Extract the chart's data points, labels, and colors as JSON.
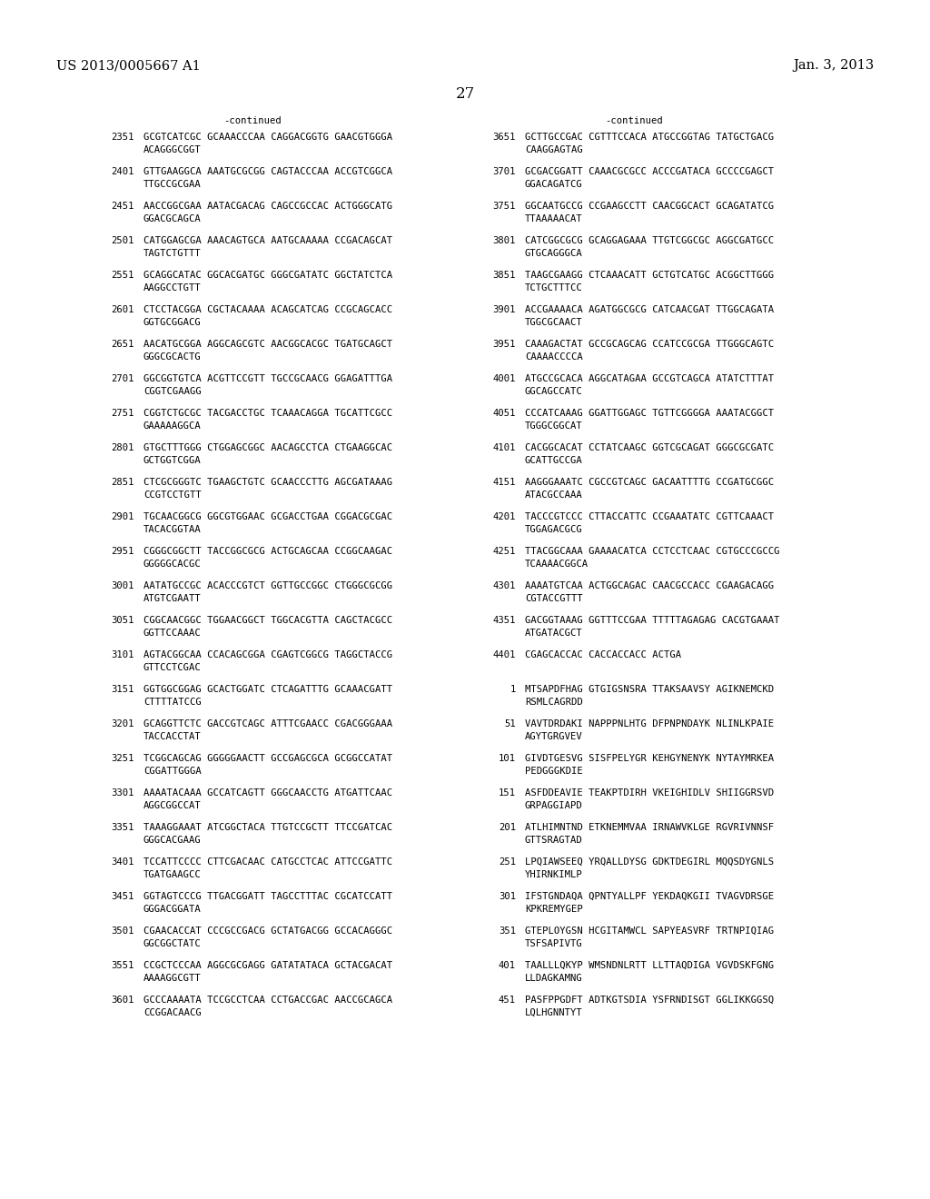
{
  "header_left": "US 2013/0005667 A1",
  "header_right": "Jan. 3, 2013",
  "page_number": "27",
  "background_color": "#ffffff",
  "text_color": "#000000",
  "left_continued": "-continued",
  "right_continued": "-continued",
  "left_column": [
    {
      "num": "2351",
      "line1": "GCGTCATCGC GCAAACCCAA CAGGACGGTG GAACGTGGGA",
      "line2": "ACAGGGCGGT"
    },
    {
      "num": "2401",
      "line1": "GTTGAAGGCA AAATGCGCGG CAGTACCCAA ACCGTCGGCA",
      "line2": "TTGCCGCGAA"
    },
    {
      "num": "2451",
      "line1": "AACCGGCGAA AATACGACAG CAGCCGCCAC ACTGGGCATG",
      "line2": "GGACGCAGCA"
    },
    {
      "num": "2501",
      "line1": "CATGGAGCGA AAACAGTGCA AATGCAAAAA CCGACAGCAT",
      "line2": "TAGTCTGTTT"
    },
    {
      "num": "2551",
      "line1": "GCAGGCATAC GGCACGATGC GGGCGATATC GGCTATCTCA",
      "line2": "AAGGCCTGTT"
    },
    {
      "num": "2601",
      "line1": "CTCCTACGGA CGCTACAAAA ACAGCATCAG CCGCAGCACC",
      "line2": "GGTGCGGACG"
    },
    {
      "num": "2651",
      "line1": "AACATGCGGA AGGCAGCGTC AACGGCACGC TGATGCAGCT",
      "line2": "GGGCGCACTG"
    },
    {
      "num": "2701",
      "line1": "GGCGGTGTCA ACGTTCCGTT TGCCGCAACG GGAGATTTGA",
      "line2": "CGGTCGAAGG"
    },
    {
      "num": "2751",
      "line1": "CGGTCTGCGC TACGACCTGC TCAAACAGGA TGCATTCGCC",
      "line2": "GAAAAAGGCA"
    },
    {
      "num": "2801",
      "line1": "GTGCTTTGGG CTGGAGCGGC AACAGCCTCA CTGAAGGCAC",
      "line2": "GCTGGTCGGA"
    },
    {
      "num": "2851",
      "line1": "CTCGCGGGTC TGAAGCTGTC GCAACCCTTG AGCGATAAAG",
      "line2": "CCGTCCTGTT"
    },
    {
      "num": "2901",
      "line1": "TGCAACGGCG GGCGTGGAAC GCGACCTGAA CGGACGCGAC",
      "line2": "TACACGGTAA"
    },
    {
      "num": "2951",
      "line1": "CGGGCGGCTT TACCGGCGCG ACTGCAGCAA CCGGCAAGAC",
      "line2": "GGGGGCACGC"
    },
    {
      "num": "3001",
      "line1": "AATATGCCGC ACACCCGTCT GGTTGCCGGC CTGGGCGCGG",
      "line2": "ATGTCGAATT"
    },
    {
      "num": "3051",
      "line1": "CGGCAACGGC TGGAACGGCT TGGCACGTTA CAGCTACGCC",
      "line2": "GGTTCCAAAC"
    },
    {
      "num": "3101",
      "line1": "AGTACGGCAA CCACAGCGGA CGAGTCGGCG TAGGCTACCG",
      "line2": "GTTCCTCGAC"
    },
    {
      "num": "3151",
      "line1": "GGTGGCGGAG GCACTGGATC CTCAGATTTG GCAAACGATT",
      "line2": "CTTTTATCCG"
    },
    {
      "num": "3201",
      "line1": "GCAGGTTCTC GACCGTCAGC ATTTCGAACC CGACGGGAAA",
      "line2": "TACCACCTAT"
    },
    {
      "num": "3251",
      "line1": "TCGGCAGCAG GGGGGAACTT GCCGAGCGCA GCGGCCATAT",
      "line2": "CGGATTGGGA"
    },
    {
      "num": "3301",
      "line1": "AAAATACAAA GCCATCAGTT GGGCAACCTG ATGATTCAAC",
      "line2": "AGGCGGCCAT"
    },
    {
      "num": "3351",
      "line1": "TAAAGGAAAT ATCGGCTACA TTGTCCGCTT TTCCGATCAC",
      "line2": "GGGCACGAAG"
    },
    {
      "num": "3401",
      "line1": "TCCATTCCCC CTTCGACAAC CATGCCTCAC ATTCCGATTC",
      "line2": "TGATGAAGCC"
    },
    {
      "num": "3451",
      "line1": "GGTAGTCCCG TTGACGGATT TAGCCTTTAC CGCATCCATT",
      "line2": "GGGACGGATA"
    },
    {
      "num": "3501",
      "line1": "CGAACACCAT CCCGCCGACG GCTATGACGG GCCACAGGGC",
      "line2": "GGCGGCTATC"
    },
    {
      "num": "3551",
      "line1": "CCGCTCCCAA AGGCGCGAGG GATATATACA GCTACGACAT",
      "line2": "AAAAGGCGTT"
    },
    {
      "num": "3601",
      "line1": "GCCCAAAATA TCCGCCTCAA CCTGACCGAC AACCGCAGCA",
      "line2": "CCGGACAACG"
    }
  ],
  "right_column": [
    {
      "num": "3651",
      "line1": "GCTTGCCGAC CGTTTCCACA ATGCCGGTAG TATGCTGACG",
      "line2": "CAAGGAGTAG"
    },
    {
      "num": "3701",
      "line1": "GCGACGGATT CAAACGCGCC ACCCGATACA GCCCCGAGCT",
      "line2": "GGACAGATCG"
    },
    {
      "num": "3751",
      "line1": "GGCAATGCCG CCGAAGCCTT CAACGGCACT GCAGATATCG",
      "line2": "TTAAAAACAT"
    },
    {
      "num": "3801",
      "line1": "CATCGGCGCG GCAGGAGAAA TTGTCGGCGC AGGCGATGCC",
      "line2": "GTGCAGGGCA"
    },
    {
      "num": "3851",
      "line1": "TAAGCGAAGG CTCAAACATT GCTGTCATGC ACGGCTTGGG",
      "line2": "TCTGCTTTCC"
    },
    {
      "num": "3901",
      "line1": "ACCGAAAACA AGATGGCGCG CATCAACGAT TTGGCAGATA",
      "line2": "TGGCGCAACT"
    },
    {
      "num": "3951",
      "line1": "CAAAGACTAT GCCGCAGCAG CCATCCGCGA TTGGGCAGTC",
      "line2": "CAAAACCCCA"
    },
    {
      "num": "4001",
      "line1": "ATGCCGCACA AGGCATAGAA GCCGTCAGCA ATATCTTTAT",
      "line2": "GGCAGCCATC"
    },
    {
      "num": "4051",
      "line1": "CCCATCAAAG GGATTGGAGC TGTTCGGGGA AAATACGGCT",
      "line2": "TGGGCGGCAT"
    },
    {
      "num": "4101",
      "line1": "CACGGCACAT CCTATCAAGC GGTCGCAGAT GGGCGCGATC",
      "line2": "GCATTGCCGA"
    },
    {
      "num": "4151",
      "line1": "AAGGGAAATC CGCCGTCAGC GACAATTTTG CCGATGCGGC",
      "line2": "ATACGCCAAA"
    },
    {
      "num": "4201",
      "line1": "TACCCGTCCC CTTACCATTC CCGAAATATC CGTTCAAACT",
      "line2": "TGGAGACGCG"
    },
    {
      "num": "4251",
      "line1": "TTACGGCAAA GAAAACATCA CCTCCTCAAC CGTGCCCGCCG",
      "line2": "TCAAAACGGCA"
    },
    {
      "num": "4301",
      "line1": "AAAATGTCAA ACTGGCAGAC CAACGCCACC CGAAGACAGG",
      "line2": "CGTACCGTTT"
    },
    {
      "num": "4351",
      "line1": "GACGGTAAAG GGTTTCCGAA TTTTTAGAGAG CACGTGAAAT",
      "line2": "ATGATACGCT"
    },
    {
      "num": "4401",
      "line1": "CGAGCACCAC CACCACCACC ACTGA",
      "line2": ""
    },
    {
      "num": "1",
      "line1": "MTSAPDFHAG GTGIGSNSRA TTAKSAAVSY AGIKNEMCKD",
      "line2": "RSMLCAGRDD"
    },
    {
      "num": "51",
      "line1": "VAVTDRDAKI NAPPPNLHTG DFPNPNDAYK NLINLKPAIE",
      "line2": "AGYTGRGVEV"
    },
    {
      "num": "101",
      "line1": "GIVDTGESVG SISFPELYGR KEHGYNENYK NYTAYMRKEA",
      "line2": "PEDGGGKDIE"
    },
    {
      "num": "151",
      "line1": "ASFDDEAVIE TEAKPTDIRH VKEIGHIDLV SHIIGGRSVD",
      "line2": "GRPAGGIAPD"
    },
    {
      "num": "201",
      "line1": "ATLHIMNTND ETKNEMMVAA IRNAWVKLGE RGVRIVNNSF",
      "line2": "GTTSRAGTAD"
    },
    {
      "num": "251",
      "line1": "LPQIAWSEEQ YRQALLDYSG GDKTDEGIRL MQQSDYGNLS",
      "line2": "YHIRNKIMLP"
    },
    {
      "num": "301",
      "line1": "IFSTGNDAQA QPNTYALLPF YEKDAQKGII TVAGVDRSGE",
      "line2": "KPKREMYGEP"
    },
    {
      "num": "351",
      "line1": "GTEPLOYGSN HCGITAMWCL SAPYEASVRF TRTNPIQIAG",
      "line2": "TSFSAPIVTG"
    },
    {
      "num": "401",
      "line1": "TAALLLQKYP WMSNDNLRTT LLTTAQDIGA VGVDSKFGNG",
      "line2": "LLDAGKAMNG"
    },
    {
      "num": "451",
      "line1": "PASFPPGDFT ADTKGTSDIA YSFRNDISGТ GGLIKKGGSQ",
      "line2": "LQLHGNNTYT"
    }
  ]
}
